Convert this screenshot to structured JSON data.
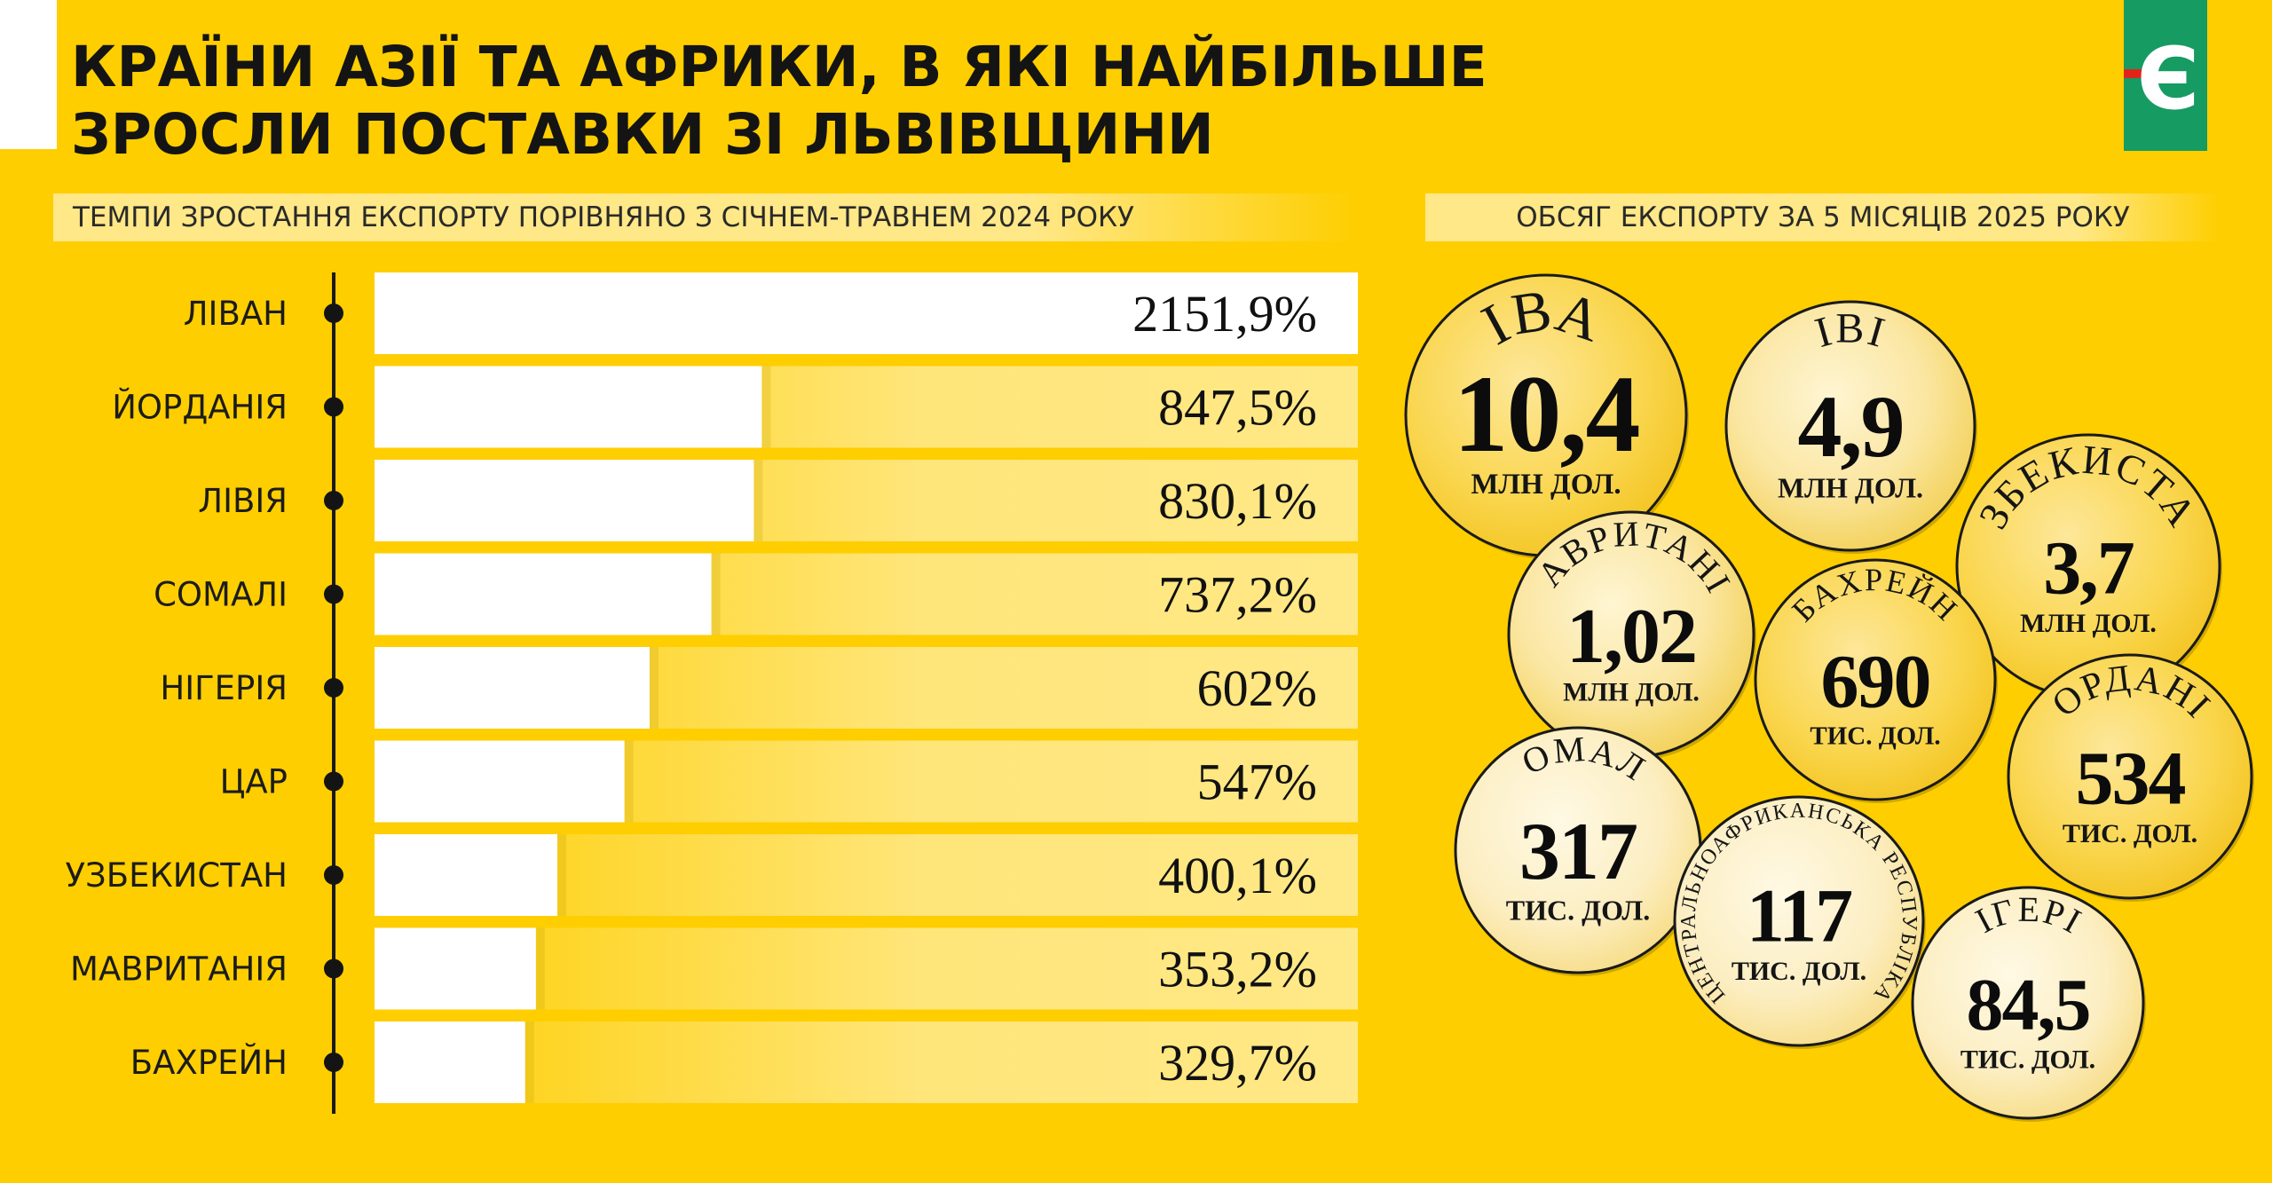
{
  "header": {
    "title_line1": "КРАЇНИ АЗІЇ ТА АФРИКИ, В ЯКІ НАЙБІЛЬШЕ",
    "title_line2": "ЗРОСЛИ ПОСТАВКИ ЗІ ЛЬВІВЩИНИ",
    "logo_letter": "Є"
  },
  "colors": {
    "background": "#FECE00",
    "band": "#FFE887",
    "bar": "#FFFFFF",
    "logo_green": "#169B62",
    "logo_red": "#E2231A",
    "coin_light": "#FDF2CB",
    "coin_mid": "#F7DB7A",
    "coin_dark": "#F5C62A"
  },
  "chart_data": [
    {
      "type": "bar",
      "orientation": "horizontal",
      "title": "ТЕМПИ ЗРОСТАННЯ ЕКСПОРТУ ПОРІВНЯНО З СІЧНЕМ-ТРАВНЕМ 2024 РОКУ",
      "categories": [
        "ЛІВАН",
        "ЙОРДАНІЯ",
        "ЛІВІЯ",
        "СОМАЛІ",
        "НІГЕРІЯ",
        "ЦАР",
        "УЗБЕКИСТАН",
        "МАВРИТАНІЯ",
        "БАХРЕЙН"
      ],
      "values": [
        2151.9,
        847.5,
        830.1,
        737.2,
        602,
        547,
        400.1,
        353.2,
        329.7
      ],
      "value_labels": [
        "2151,9%",
        "847,5%",
        "830,1%",
        "737,2%",
        "602%",
        "547%",
        "400,1%",
        "353,2%",
        "329,7%"
      ],
      "unit": "%",
      "grid": false
    },
    {
      "type": "bubble",
      "title": "ОБСЯГ ЕКСПОРТУ ЗА 5 МІСЯЦІВ 2025 РОКУ",
      "items": [
        {
          "country": "ЛІВАН",
          "value": 10.4,
          "value_label": "10,4",
          "unit": "МЛН ДОЛ."
        },
        {
          "country": "ЛІВІЯ",
          "value": 4.9,
          "value_label": "4,9",
          "unit": "МЛН ДОЛ."
        },
        {
          "country": "УЗБЕКИСТАН",
          "value": 3.7,
          "value_label": "3,7",
          "unit": "МЛН ДОЛ."
        },
        {
          "country": "МАВРИТАНІЯ",
          "value": 1.02,
          "value_label": "1,02",
          "unit": "МЛН ДОЛ."
        },
        {
          "country": "БАХРЕЙН",
          "value": 690,
          "value_label": "690",
          "unit": "ТИС. ДОЛ."
        },
        {
          "country": "ЙОРДАНІЯ",
          "value": 534,
          "value_label": "534",
          "unit": "ТИС. ДОЛ."
        },
        {
          "country": "СОМАЛІ",
          "value": 317,
          "value_label": "317",
          "unit": "ТИС. ДОЛ."
        },
        {
          "country": "ЦЕНТРАЛЬНОАФРИКАНСЬКА РЕСПУБЛІКА",
          "value": 117,
          "value_label": "117",
          "unit": "ТИС. ДОЛ."
        },
        {
          "country": "НІГЕРІЯ",
          "value": 84.5,
          "value_label": "84,5",
          "unit": "ТИС. ДОЛ."
        }
      ]
    }
  ]
}
